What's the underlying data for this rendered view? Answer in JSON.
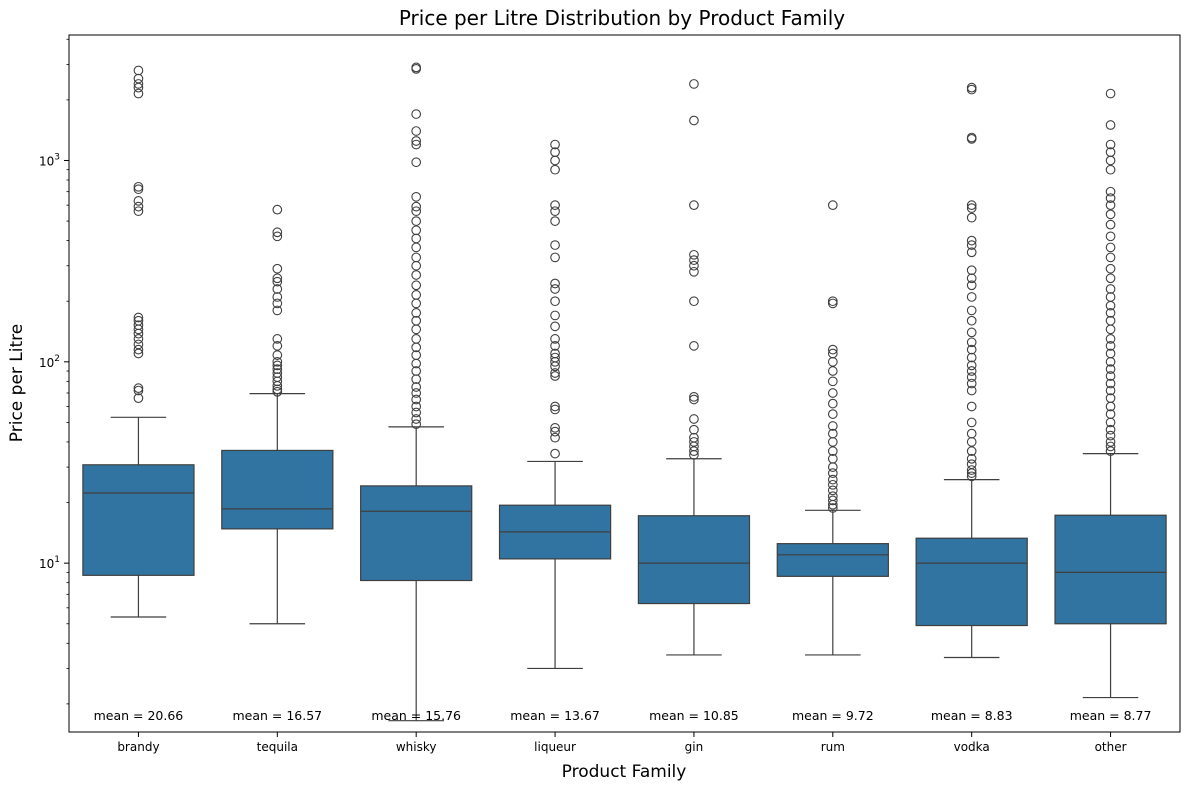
{
  "chart_data": {
    "type": "box",
    "title": "Price per Litre Distribution by Product Family",
    "xlabel": "Product Family",
    "ylabel": "Price per Litre",
    "yscale": "log",
    "ylim": [
      1.45,
      4200
    ],
    "y_ticks": [
      {
        "value": 10,
        "base": "10",
        "exp": "1"
      },
      {
        "value": 100,
        "base": "10",
        "exp": "2"
      },
      {
        "value": 1000,
        "base": "10",
        "exp": "3"
      }
    ],
    "grid": false,
    "box_color": "#3274a1",
    "line_color": "#3f3f3f",
    "categories": [
      "brandy",
      "tequila",
      "whisky",
      "liqueur",
      "gin",
      "rum",
      "vodka",
      "other"
    ],
    "boxes": [
      {
        "name": "brandy",
        "whislo": 5.4,
        "q1": 8.7,
        "med": 22.3,
        "q3": 30.8,
        "whishi": 53,
        "mean_label": "mean = 20.66",
        "fliers": [
          66,
          72,
          74,
          110,
          115,
          122,
          130,
          138,
          145,
          152,
          160,
          166,
          560,
          590,
          630,
          720,
          740,
          2150,
          2300,
          2400,
          2550,
          2800
        ]
      },
      {
        "name": "tequila",
        "whislo": 5.0,
        "q1": 14.8,
        "med": 18.6,
        "q3": 36.3,
        "whishi": 69.5,
        "mean_label": "mean = 16.57",
        "fliers": [
          71,
          73,
          76,
          80,
          84,
          88,
          92,
          96,
          100,
          108,
          120,
          130,
          180,
          195,
          210,
          230,
          250,
          260,
          290,
          420,
          440,
          570
        ]
      },
      {
        "name": "whisky",
        "whislo": 1.65,
        "q1": 8.2,
        "med": 18.1,
        "q3": 24.2,
        "whishi": 47.5,
        "mean_label": "mean = 15.76",
        "fliers": [
          49,
          52,
          56,
          60,
          65,
          70,
          75,
          82,
          90,
          98,
          108,
          118,
          130,
          145,
          160,
          175,
          195,
          215,
          240,
          270,
          300,
          330,
          370,
          410,
          450,
          500,
          560,
          590,
          660,
          980,
          1200,
          1250,
          1400,
          1700,
          2850,
          2900
        ]
      },
      {
        "name": "liqueur",
        "whislo": 3.0,
        "q1": 10.5,
        "med": 14.3,
        "q3": 19.4,
        "whishi": 32,
        "mean_label": "mean = 13.67",
        "fliers": [
          35,
          42,
          45,
          47,
          58,
          60,
          85,
          88,
          95,
          100,
          105,
          110,
          120,
          130,
          150,
          170,
          200,
          230,
          245,
          330,
          380,
          500,
          560,
          600,
          900,
          1000,
          1100,
          1200
        ]
      },
      {
        "name": "gin",
        "whislo": 3.5,
        "q1": 6.3,
        "med": 10.0,
        "q3": 17.2,
        "whishi": 33,
        "mean_label": "mean = 10.85",
        "fliers": [
          34.5,
          36,
          38,
          40,
          42,
          46,
          52,
          65,
          67,
          120,
          200,
          280,
          300,
          320,
          340,
          600,
          1580,
          2400
        ]
      },
      {
        "name": "rum",
        "whislo": 3.5,
        "q1": 8.6,
        "med": 11.0,
        "q3": 12.5,
        "whishi": 18.3,
        "mean_label": "mean = 9.72",
        "fliers": [
          18.8,
          19.5,
          20.5,
          21.5,
          23,
          24.5,
          26,
          28,
          30,
          33,
          36,
          40,
          44,
          48,
          55,
          62,
          70,
          80,
          90,
          100,
          110,
          115,
          195,
          200,
          600
        ]
      },
      {
        "name": "vodka",
        "whislo": 3.4,
        "q1": 4.9,
        "med": 10.0,
        "q3": 13.3,
        "whishi": 26,
        "mean_label": "mean = 8.83",
        "fliers": [
          27,
          28,
          29,
          31,
          33,
          36,
          40,
          44,
          50,
          60,
          72,
          78,
          84,
          90,
          96,
          105,
          115,
          125,
          140,
          160,
          180,
          210,
          240,
          260,
          285,
          350,
          380,
          400,
          520,
          580,
          600,
          1280,
          1300,
          2250,
          2300
        ]
      },
      {
        "name": "other",
        "whislo": 2.15,
        "q1": 5.0,
        "med": 9.0,
        "q3": 17.3,
        "whishi": 35,
        "mean_label": "mean = 8.77",
        "fliers": [
          36,
          38,
          40,
          43,
          46,
          50,
          55,
          60,
          66,
          72,
          78,
          85,
          92,
          100,
          110,
          120,
          130,
          145,
          160,
          175,
          190,
          210,
          230,
          260,
          290,
          330,
          370,
          420,
          480,
          540,
          600,
          650,
          700,
          900,
          1000,
          1100,
          1200,
          1500,
          2150
        ]
      }
    ]
  }
}
